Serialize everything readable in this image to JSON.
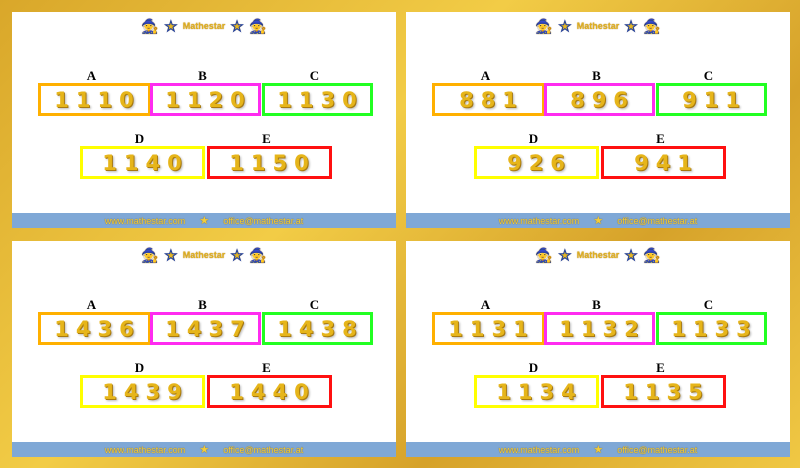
{
  "logo_text": "Mathestar",
  "footer": {
    "website": "www.mathestar.com",
    "email": "office@mathestar.at"
  },
  "colors": {
    "A": "#ffb000",
    "B": "#ff2bf0",
    "C": "#22ff22",
    "D": "#ffff00",
    "E": "#ff1010",
    "footer": "#7fa8d6",
    "frame": "#e2b43a"
  },
  "labels": [
    "A",
    "B",
    "C",
    "D",
    "E"
  ],
  "panels": [
    {
      "values": [
        "1110",
        "1120",
        "1130",
        "1140",
        "1150"
      ]
    },
    {
      "values": [
        "881",
        "896",
        "911",
        "926",
        "941"
      ]
    },
    {
      "values": [
        "1436",
        "1437",
        "1438",
        "1439",
        "1440"
      ]
    },
    {
      "values": [
        "1131",
        "1132",
        "1133",
        "1134",
        "1135"
      ]
    }
  ]
}
